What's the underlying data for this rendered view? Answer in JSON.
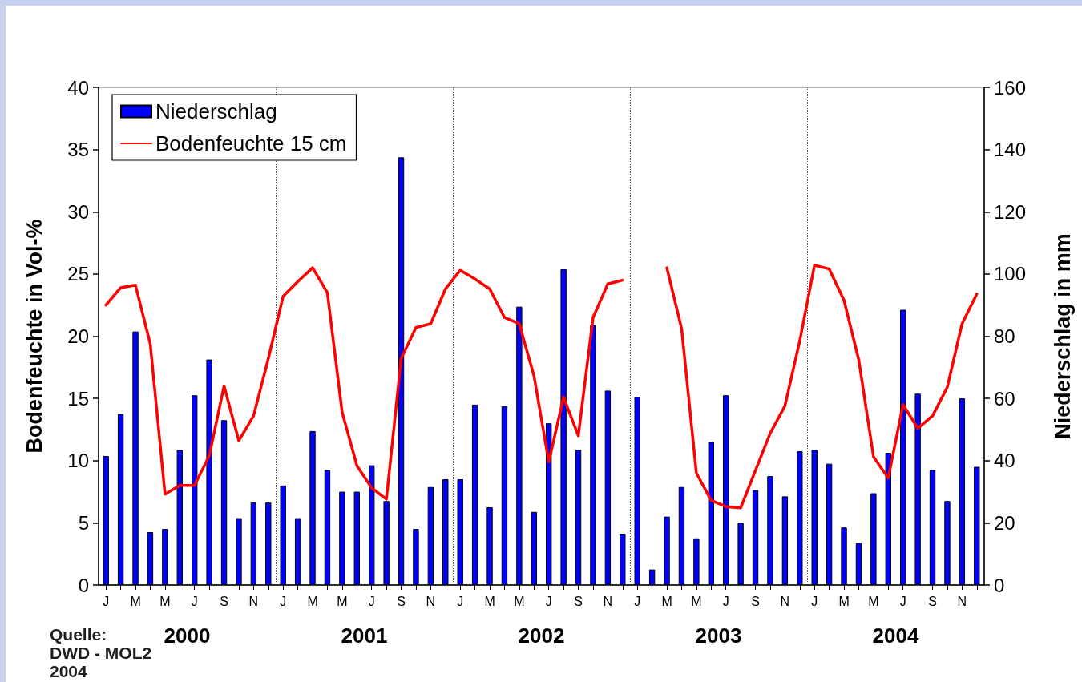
{
  "chart_data": {
    "type": "bar",
    "categories": [
      "J",
      null,
      "M",
      null,
      "M",
      null,
      "J",
      null,
      "S",
      null,
      "N",
      null,
      "J",
      null,
      "M",
      null,
      "M",
      null,
      "J",
      null,
      "S",
      null,
      "N",
      null,
      "J",
      null,
      "M",
      null,
      "M",
      null,
      "J",
      null,
      "S",
      null,
      "N",
      null,
      "J",
      null,
      "M",
      null,
      "M",
      null,
      "J",
      null,
      "S",
      null,
      "N",
      null,
      "J",
      null,
      "M",
      null,
      "M",
      null,
      "J",
      null,
      "S",
      null,
      "N",
      null
    ],
    "series": [
      {
        "name": "Niederschlag",
        "axis": "y2",
        "color": "#0000ff",
        "values": [
          41.5,
          55,
          81.5,
          17,
          18,
          43.5,
          61,
          72.5,
          53,
          21.5,
          26.5,
          26.5,
          32,
          21.5,
          49.5,
          37,
          30,
          30,
          38.5,
          27,
          137.5,
          18,
          31.5,
          34,
          34,
          58,
          25,
          57.5,
          89.5,
          23.5,
          52,
          101.5,
          43.5,
          83.5,
          62.5,
          16.5,
          60.5,
          5,
          22,
          31.5,
          15,
          46,
          61,
          20,
          30.5,
          35,
          28.5,
          43,
          43.5,
          39,
          18.5,
          13.5,
          29.5,
          42.5,
          88.5,
          61.5,
          37,
          27,
          60,
          38
        ]
      },
      {
        "name": "Bodenfeuchte 15 cm",
        "type": "line",
        "color": "#ff0000",
        "values": [
          22.5,
          23.9,
          24.1,
          19.4,
          7.3,
          8.0,
          8.0,
          10.4,
          16.0,
          11.6,
          13.6,
          18.2,
          23.2,
          24.4,
          25.5,
          23.5,
          13.9,
          9.6,
          7.8,
          6.9,
          18.2,
          20.7,
          21.0,
          23.8,
          25.3,
          24.6,
          23.8,
          21.5,
          21.0,
          16.8,
          9.9,
          15.1,
          12.0,
          21.5,
          24.2,
          24.5,
          null,
          null,
          25.5,
          20.6,
          9.0,
          6.8,
          6.3,
          6.2,
          9.2,
          12.2,
          14.4,
          19.6,
          25.7,
          25.4,
          22.9,
          18.1,
          10.3,
          8.6,
          14.5,
          12.6,
          13.6,
          15.9,
          21.0,
          23.4
        ]
      }
    ],
    "ylabel": "Bodenfeuchte in Vol-%",
    "y2label": "Niederschlag in mm",
    "ylim": [
      0,
      40
    ],
    "yticks": [
      0,
      5,
      10,
      15,
      20,
      25,
      30,
      35,
      40
    ],
    "y2lim": [
      0,
      160
    ],
    "y2ticks": [
      0,
      20,
      40,
      60,
      80,
      100,
      120,
      140,
      160
    ],
    "legend": "top left",
    "marker": "none",
    "line_style": "solid",
    "annotations": [
      "2000",
      "2001",
      "2002",
      "2003",
      "2004",
      "Quelle:\nDWD - MOL2\n2004"
    ]
  }
}
